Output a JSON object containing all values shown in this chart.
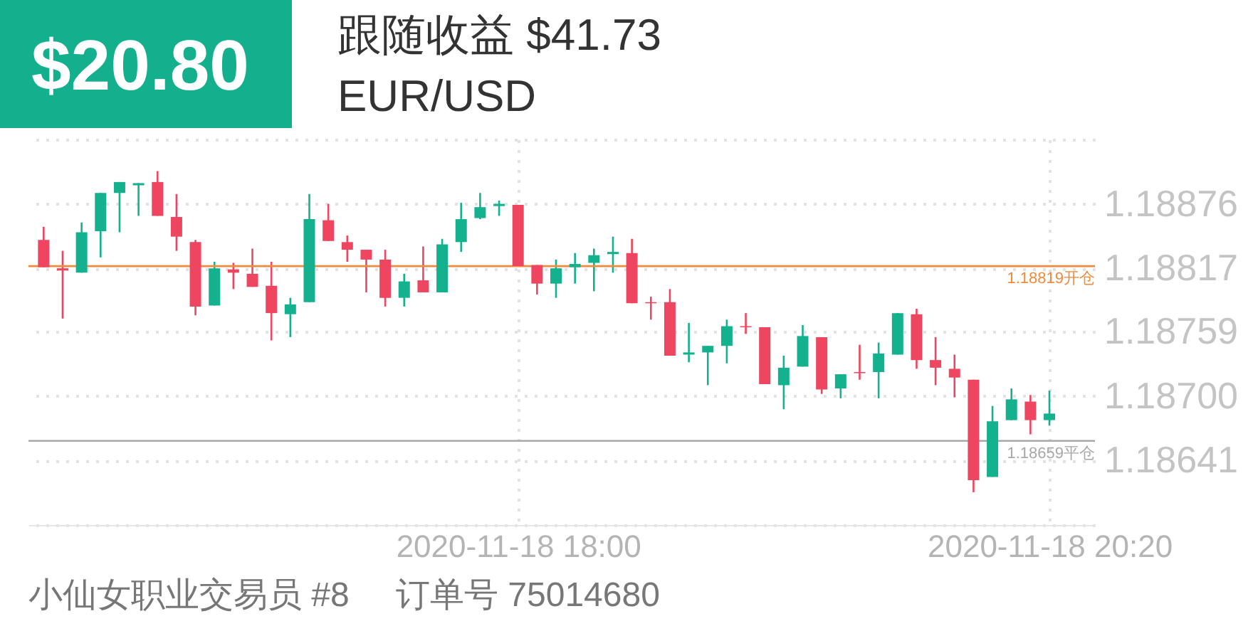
{
  "chart_data": {
    "type": "candlestick",
    "title": "EUR/USD",
    "annotations": [
      "$20.80",
      "跟随收益 $41.73",
      "小仙女职业交易员 #8",
      "订单号 75014680"
    ],
    "x": [
      "2020-11-18T15:55",
      "2020-11-18T16:00",
      "2020-11-18T16:05",
      "2020-11-18T16:10",
      "2020-11-18T16:15",
      "2020-11-18T16:20",
      "2020-11-18T16:25",
      "2020-11-18T16:30",
      "2020-11-18T16:35",
      "2020-11-18T16:40",
      "2020-11-18T16:45",
      "2020-11-18T16:50",
      "2020-11-18T16:55",
      "2020-11-18T17:00",
      "2020-11-18T17:05",
      "2020-11-18T17:10",
      "2020-11-18T17:15",
      "2020-11-18T17:20",
      "2020-11-18T17:25",
      "2020-11-18T17:30",
      "2020-11-18T17:35",
      "2020-11-18T17:40",
      "2020-11-18T17:45",
      "2020-11-18T17:50",
      "2020-11-18T17:55",
      "2020-11-18T18:00",
      "2020-11-18T18:05",
      "2020-11-18T18:10",
      "2020-11-18T18:15",
      "2020-11-18T18:20",
      "2020-11-18T18:25",
      "2020-11-18T18:30",
      "2020-11-18T18:35",
      "2020-11-18T18:40",
      "2020-11-18T18:45",
      "2020-11-18T18:50",
      "2020-11-18T18:55",
      "2020-11-18T19:00",
      "2020-11-18T19:05",
      "2020-11-18T19:10",
      "2020-11-18T19:15",
      "2020-11-18T19:20",
      "2020-11-18T19:25",
      "2020-11-18T19:30",
      "2020-11-18T19:35",
      "2020-11-18T19:40",
      "2020-11-18T19:45",
      "2020-11-18T19:50",
      "2020-11-18T19:55",
      "2020-11-18T20:00",
      "2020-11-18T20:05",
      "2020-11-18T20:10",
      "2020-11-18T20:15",
      "2020-11-18T20:20"
    ],
    "ohlc": [
      [
        1.18843,
        1.18855,
        1.18818,
        1.18818
      ],
      [
        1.18817,
        1.18833,
        1.18771,
        1.18815
      ],
      [
        1.18813,
        1.18859,
        1.18813,
        1.1885
      ],
      [
        1.18851,
        1.18886,
        1.18827,
        1.18886
      ],
      [
        1.18886,
        1.18896,
        1.1885,
        1.18896
      ],
      [
        1.18893,
        1.18895,
        1.18865,
        1.18895
      ],
      [
        1.18896,
        1.18906,
        1.18865,
        1.18865
      ],
      [
        1.18864,
        1.18885,
        1.18833,
        1.18846
      ],
      [
        1.18841,
        1.18843,
        1.18774,
        1.18782
      ],
      [
        1.18783,
        1.18823,
        1.18783,
        1.18817
      ],
      [
        1.18816,
        1.18822,
        1.18798,
        1.18813
      ],
      [
        1.18812,
        1.18835,
        1.188,
        1.188
      ],
      [
        1.18801,
        1.18823,
        1.18751,
        1.18776
      ],
      [
        1.18775,
        1.1879,
        1.18754,
        1.18784
      ],
      [
        1.18786,
        1.18885,
        1.18786,
        1.18862
      ],
      [
        1.18861,
        1.18876,
        1.18842,
        1.18842
      ],
      [
        1.18841,
        1.18847,
        1.18823,
        1.18834
      ],
      [
        1.18834,
        1.18834,
        1.18795,
        1.18825
      ],
      [
        1.18825,
        1.18834,
        1.18782,
        1.1879
      ],
      [
        1.1879,
        1.18812,
        1.18782,
        1.18805
      ],
      [
        1.18806,
        1.18837,
        1.18795,
        1.18795
      ],
      [
        1.18795,
        1.18844,
        1.18795,
        1.18839
      ],
      [
        1.18841,
        1.18877,
        1.18832,
        1.18862
      ],
      [
        1.18863,
        1.18886,
        1.18862,
        1.18873
      ],
      [
        1.18874,
        1.18879,
        1.18865,
        1.18876
      ],
      [
        1.18875,
        1.18875,
        1.18819,
        1.18819
      ],
      [
        1.1882,
        1.1882,
        1.18793,
        1.18803
      ],
      [
        1.18803,
        1.18825,
        1.1879,
        1.18817
      ],
      [
        1.18818,
        1.18831,
        1.18803,
        1.18821
      ],
      [
        1.18822,
        1.18835,
        1.18796,
        1.18829
      ],
      [
        1.1883,
        1.18846,
        1.18813,
        1.18832
      ],
      [
        1.18831,
        1.18844,
        1.18785,
        1.18785
      ],
      [
        1.18786,
        1.18791,
        1.1877,
        1.18785
      ],
      [
        1.18786,
        1.18798,
        1.18737,
        1.18737
      ],
      [
        1.18738,
        1.18767,
        1.18731,
        1.1874
      ],
      [
        1.1874,
        1.18746,
        1.1871,
        1.18746
      ],
      [
        1.18746,
        1.1877,
        1.1873,
        1.18764
      ],
      [
        1.18764,
        1.18776,
        1.18757,
        1.18763
      ],
      [
        1.18763,
        1.18763,
        1.18711,
        1.18711
      ],
      [
        1.1871,
        1.18737,
        1.18688,
        1.18726
      ],
      [
        1.18727,
        1.18765,
        1.18727,
        1.18755
      ],
      [
        1.18754,
        1.18754,
        1.18702,
        1.18706
      ],
      [
        1.18707,
        1.1872,
        1.18698,
        1.1872
      ],
      [
        1.18722,
        1.18747,
        1.18715,
        1.18721
      ],
      [
        1.18722,
        1.18749,
        1.18698,
        1.18739
      ],
      [
        1.18738,
        1.18776,
        1.18738,
        1.18776
      ],
      [
        1.18775,
        1.1878,
        1.18725,
        1.18733
      ],
      [
        1.18733,
        1.18754,
        1.1871,
        1.18726
      ],
      [
        1.18725,
        1.18738,
        1.18699,
        1.18717
      ],
      [
        1.18715,
        1.18715,
        1.18612,
        1.18623
      ],
      [
        1.18626,
        1.18691,
        1.18626,
        1.18677
      ],
      [
        1.18678,
        1.18707,
        1.18678,
        1.18697
      ],
      [
        1.18695,
        1.18701,
        1.18665,
        1.18678
      ],
      [
        1.18678,
        1.18705,
        1.18673,
        1.18684
      ]
    ],
    "colors": [
      "#ee4660",
      "#ee4660",
      "#14b18f",
      "#14b18f",
      "#14b18f",
      "#14b18f",
      "#ee4660",
      "#ee4660",
      "#ee4660",
      "#14b18f",
      "#ee4660",
      "#ee4660",
      "#ee4660",
      "#14b18f",
      "#14b18f",
      "#ee4660",
      "#ee4660",
      "#ee4660",
      "#ee4660",
      "#14b18f",
      "#ee4660",
      "#14b18f",
      "#14b18f",
      "#14b18f",
      "#14b18f",
      "#ee4660",
      "#ee4660",
      "#14b18f",
      "#14b18f",
      "#14b18f",
      "#14b18f",
      "#ee4660",
      "#ee4660",
      "#ee4660",
      "#14b18f",
      "#14b18f",
      "#14b18f",
      "#ee4660",
      "#ee4660",
      "#14b18f",
      "#14b18f",
      "#ee4660",
      "#14b18f",
      "#ee4660",
      "#14b18f",
      "#14b18f",
      "#ee4660",
      "#ee4660",
      "#ee4660",
      "#ee4660",
      "#14b18f",
      "#14b18f",
      "#ee4660",
      "#14b18f"
    ],
    "xlim": [
      "2020-11-18T15:51",
      "2020-11-18T20:32"
    ],
    "xticks": [
      {
        "value": "2020-11-18T18:00",
        "label": "2020-11-18 18:00"
      },
      {
        "value": "2020-11-18T20:20",
        "label": "2020-11-18 20:20"
      }
    ],
    "ylim": [
      1.18582,
      1.18935
    ],
    "yticks": [
      {
        "value": 1.18582,
        "label": null
      },
      1.18641,
      {
        "value": 1.187,
        "label": "1.18700"
      },
      1.18759,
      1.18817,
      1.18876,
      {
        "value": 1.18935,
        "label": null
      }
    ],
    "grid": true,
    "ref_lines": [
      {
        "axis": "y",
        "value": 1.18819,
        "label": "1.18819开仓",
        "color": "#f08a3c"
      },
      {
        "axis": "y",
        "value": 1.18659,
        "label": "1.18659平仓",
        "color": "#a8a8a8"
      }
    ]
  }
}
